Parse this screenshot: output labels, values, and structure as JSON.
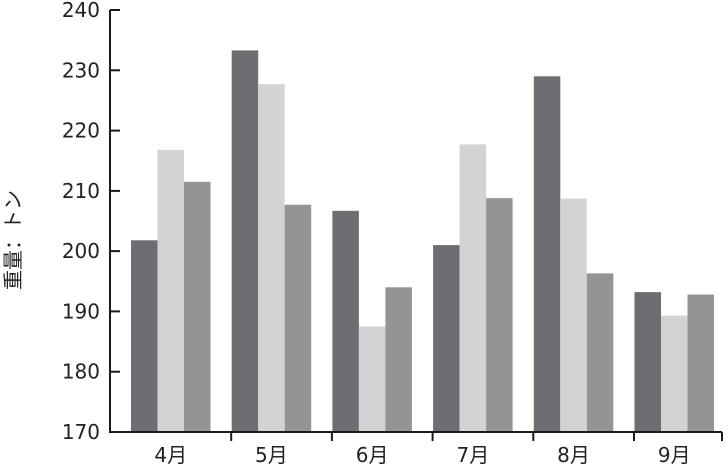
{
  "chart_data": {
    "type": "bar",
    "categories": [
      "4月",
      "5月",
      "6月",
      "7月",
      "8月",
      "9月"
    ],
    "series": [
      {
        "values": [
          201.8,
          233.3,
          206.7,
          201.0,
          229.0,
          193.2
        ],
        "color": "#6e6e72"
      },
      {
        "values": [
          216.8,
          227.7,
          187.5,
          217.7,
          208.7,
          189.3
        ],
        "color": "#d2d3d5"
      },
      {
        "values": [
          211.5,
          207.7,
          194.0,
          208.8,
          196.3,
          192.8
        ],
        "color": "#939496"
      }
    ],
    "ylabel": "重量：トン",
    "ylim": [
      170,
      240
    ],
    "yticks": [
      170,
      180,
      190,
      200,
      210,
      220,
      230,
      240
    ],
    "legend": "none",
    "grid": false
  }
}
